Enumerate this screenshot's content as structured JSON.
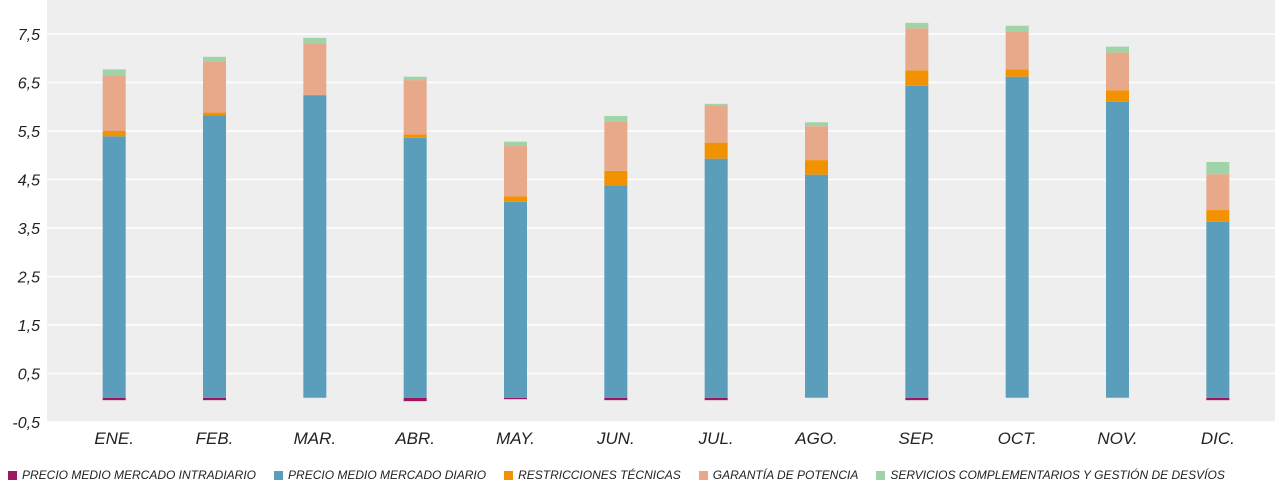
{
  "chart_data": {
    "type": "bar",
    "stacked": true,
    "categories": [
      "ENE.",
      "FEB.",
      "MAR.",
      "ABR.",
      "MAY.",
      "JUN.",
      "JUL.",
      "AGO.",
      "SEP.",
      "OCT.",
      "NOV.",
      "DIC."
    ],
    "series": [
      {
        "name": "PRECIO MEDIO MERCADO INTRADIARIO",
        "color": "#9c1660",
        "values": [
          -0.05,
          -0.05,
          0.0,
          -0.07,
          -0.03,
          -0.05,
          -0.05,
          0.0,
          -0.05,
          0.0,
          0.0,
          -0.05
        ]
      },
      {
        "name": "PRECIO MEDIO MERCADO DIARIO",
        "color": "#5a9ebb",
        "values": [
          5.39,
          5.82,
          6.24,
          5.36,
          4.04,
          4.38,
          4.93,
          4.6,
          6.43,
          6.62,
          6.1,
          3.63
        ]
      },
      {
        "name": "RESTRICCIONES TÉCNICAS",
        "color": "#f39200",
        "values": [
          0.11,
          0.06,
          0.0,
          0.07,
          0.11,
          0.3,
          0.33,
          0.3,
          0.32,
          0.15,
          0.24,
          0.24
        ]
      },
      {
        "name": "GARANTÍA DE POTENCIA",
        "color": "#e8a98a",
        "values": [
          1.15,
          1.06,
          1.07,
          1.12,
          1.04,
          1.02,
          0.77,
          0.7,
          0.87,
          0.78,
          0.78,
          0.74
        ]
      },
      {
        "name": "SERVICIOS COMPLEMENTARIOS Y GESTIÓN DE DESVÍOS",
        "color": "#9fd3a8",
        "values": [
          0.12,
          0.09,
          0.11,
          0.07,
          0.09,
          0.11,
          0.03,
          0.08,
          0.11,
          0.12,
          0.12,
          0.25
        ]
      }
    ],
    "yticks": [
      "-0,5",
      "0,5",
      "1,5",
      "2,5",
      "3,5",
      "4,5",
      "5,5",
      "6,5",
      "7,5"
    ],
    "ylim": [
      -0.5,
      8.0
    ],
    "grid": true,
    "legend_position": "bottom",
    "title": "",
    "xlabel": "",
    "ylabel": ""
  }
}
